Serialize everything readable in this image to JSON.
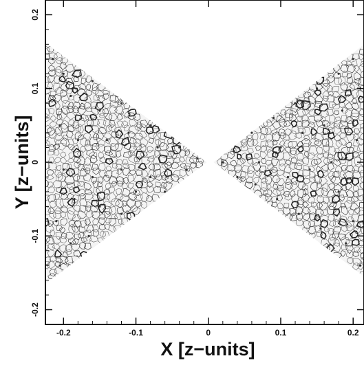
{
  "chart_data": {
    "type": "scatter",
    "title": "",
    "xlabel": "X [z−units]",
    "ylabel": "Y [z−units]",
    "xlim": [
      -0.225,
      0.215
    ],
    "ylim": [
      -0.22,
      0.22
    ],
    "x_ticks": [
      {
        "value": -0.2,
        "label": "-0.2"
      },
      {
        "value": -0.1,
        "label": "-0.1"
      },
      {
        "value": 0,
        "label": "0"
      },
      {
        "value": 0.1,
        "label": "0.1"
      },
      {
        "value": 0.2,
        "label": "0.2"
      }
    ],
    "y_ticks": [
      {
        "value": -0.2,
        "label": "-0.2"
      },
      {
        "value": -0.1,
        "label": "-0.1"
      },
      {
        "value": 0,
        "label": "0"
      },
      {
        "value": 0.1,
        "label": "0.1"
      },
      {
        "value": 0.2,
        "label": "0.2"
      }
    ],
    "grid": false,
    "series": [
      {
        "region": "left-wedge",
        "apex": [
          -0.002,
          0.0
        ],
        "far_edge_x": -0.225,
        "y_range_at_far_edge": [
          -0.165,
          0.162
        ],
        "points": [
          [
            -0.215,
            0.14
          ],
          [
            -0.2,
            0.12
          ],
          [
            -0.19,
            0.09
          ],
          [
            -0.205,
            0.05
          ],
          [
            -0.18,
            0.03
          ],
          [
            -0.2,
            -0.01
          ],
          [
            -0.185,
            -0.05
          ],
          [
            -0.21,
            -0.08
          ],
          [
            -0.19,
            -0.11
          ],
          [
            -0.205,
            -0.14
          ],
          [
            -0.16,
            0.11
          ],
          [
            -0.15,
            0.07
          ],
          [
            -0.14,
            0.03
          ],
          [
            -0.16,
            -0.02
          ],
          [
            -0.15,
            -0.06
          ],
          [
            -0.165,
            -0.1
          ],
          [
            -0.12,
            0.08
          ],
          [
            -0.11,
            0.04
          ],
          [
            -0.12,
            -0.01
          ],
          [
            -0.1,
            -0.04
          ],
          [
            -0.12,
            -0.07
          ],
          [
            -0.08,
            0.05
          ],
          [
            -0.07,
            0.02
          ],
          [
            -0.08,
            -0.02
          ],
          [
            -0.06,
            -0.04
          ],
          [
            -0.04,
            0.02
          ],
          [
            -0.03,
            -0.01
          ],
          [
            -0.015,
            0.005
          ]
        ]
      },
      {
        "region": "right-wedge",
        "apex": [
          0.007,
          0.0
        ],
        "far_edge_x": 0.215,
        "y_range_at_far_edge": [
          -0.155,
          0.16
        ],
        "points": [
          [
            0.02,
            0.0
          ],
          [
            0.035,
            0.015
          ],
          [
            0.04,
            -0.02
          ],
          [
            0.06,
            0.04
          ],
          [
            0.065,
            -0.03
          ],
          [
            0.07,
            0.0
          ],
          [
            0.09,
            0.06
          ],
          [
            0.1,
            0.02
          ],
          [
            0.095,
            -0.05
          ],
          [
            0.11,
            -0.02
          ],
          [
            0.12,
            0.08
          ],
          [
            0.13,
            0.04
          ],
          [
            0.125,
            -0.07
          ],
          [
            0.14,
            -0.01
          ],
          [
            0.15,
            0.1
          ],
          [
            0.16,
            0.05
          ],
          [
            0.155,
            -0.09
          ],
          [
            0.17,
            0.0
          ],
          [
            0.18,
            0.12
          ],
          [
            0.185,
            0.07
          ],
          [
            0.18,
            -0.04
          ],
          [
            0.19,
            -0.11
          ],
          [
            0.2,
            0.14
          ],
          [
            0.205,
            0.03
          ],
          [
            0.2,
            -0.08
          ],
          [
            0.21,
            -0.14
          ],
          [
            0.21,
            0.1
          ]
        ]
      }
    ]
  }
}
